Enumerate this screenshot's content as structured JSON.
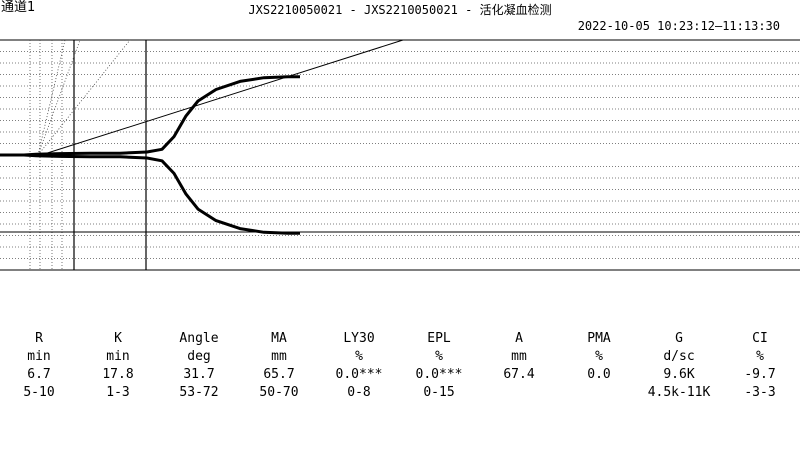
{
  "header": {
    "channel": "通道1",
    "title": "JXS2210050021 - JXS2210050021 - 活化凝血检测",
    "timestamp": "2022-10-05 10:23:12—11:13:30"
  },
  "params": [
    {
      "name": "R",
      "unit": "min",
      "value": "6.7",
      "range": "5-10"
    },
    {
      "name": "K",
      "unit": "min",
      "value": "17.8",
      "range": "1-3"
    },
    {
      "name": "Angle",
      "unit": "deg",
      "value": "31.7",
      "range": "53-72"
    },
    {
      "name": "MA",
      "unit": "mm",
      "value": "65.7",
      "range": "50-70"
    },
    {
      "name": "LY30",
      "unit": "%",
      "value": "0.0***",
      "range": "0-8"
    },
    {
      "name": "EPL",
      "unit": "%",
      "value": "0.0***",
      "range": "0-15"
    },
    {
      "name": "A",
      "unit": "mm",
      "value": "67.4",
      "range": ""
    },
    {
      "name": "PMA",
      "unit": "%",
      "value": "0.0",
      "range": ""
    },
    {
      "name": "G",
      "unit": "d/sc",
      "value": "9.6K",
      "range": "4.5k-11K"
    },
    {
      "name": "CI",
      "unit": "%",
      "value": "-9.7",
      "range": "-3-3"
    }
  ],
  "chart_data": {
    "type": "line",
    "title": "",
    "xlabel": "",
    "ylabel": "",
    "grid": true,
    "legend": "none",
    "xlim": [
      0,
      80
    ],
    "ylim": [
      -50,
      50
    ],
    "x_unit": "min",
    "y_unit": "mm",
    "markers": {
      "R_min": 6.7,
      "R_plus_K_min": 24.5
    },
    "series": [
      {
        "name": "",
        "color": "#000000",
        "x": [
          0,
          4,
          6,
          6.7,
          10,
          15,
          20,
          24.5,
          27,
          29,
          31,
          33,
          36,
          40,
          44,
          48,
          50
        ],
        "y": [
          0,
          0,
          0.3,
          0.4,
          0.6,
          0.8,
          0.8,
          1.3,
          2.5,
          8,
          17,
          23.5,
          28.5,
          32,
          33.6,
          34,
          34
        ]
      }
    ]
  }
}
